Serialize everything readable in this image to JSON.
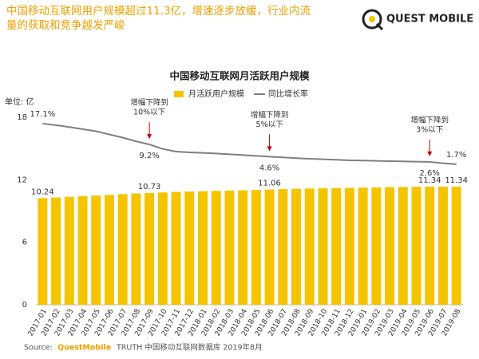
{
  "header": {
    "title": [
      "中国移动互联网用户规模超过11.3亿，增速逐步放缓，行业内流",
      "量的获取和竞争越发严峻"
    ],
    "logo": "QUEST MOBILE"
  },
  "chart_data": {
    "type": "bar-line",
    "title": "中国移动互联网月活跃用户规模",
    "y_label": "单位: 亿",
    "categories": [
      "2017-01",
      "2017-02",
      "2017-03",
      "2017-04",
      "2017-05",
      "2017-06",
      "2017-07",
      "2017-08",
      "2017-09",
      "2017-10",
      "2017-11",
      "2017-12",
      "2018-01",
      "2018-02",
      "2018-03",
      "2018-04",
      "2018-05",
      "2018-06",
      "2018-07",
      "2018-08",
      "2018-09",
      "2018-10",
      "2018-11",
      "2018-12",
      "2019-01",
      "2019-02",
      "2019-03",
      "2019-04",
      "2019-05",
      "2019-06",
      "2019-07",
      "2019-08"
    ],
    "series": [
      {
        "name": "月活跃用户规模",
        "color": "#f5c400",
        "type": "bar",
        "values": [
          10.24,
          10.3,
          10.36,
          10.42,
          10.48,
          10.55,
          10.62,
          10.68,
          10.73,
          10.78,
          10.83,
          10.87,
          10.9,
          10.93,
          10.96,
          10.99,
          11.03,
          11.06,
          11.1,
          11.13,
          11.16,
          11.19,
          11.21,
          11.23,
          11.25,
          11.27,
          11.29,
          11.31,
          11.33,
          11.34,
          11.34,
          11.34
        ],
        "value_labels": [
          "10.24",
          null,
          null,
          null,
          null,
          null,
          null,
          null,
          "10.73",
          null,
          null,
          null,
          null,
          null,
          null,
          null,
          null,
          "11.06",
          null,
          null,
          null,
          null,
          null,
          null,
          null,
          null,
          null,
          null,
          null,
          "11.34",
          null,
          "11.34"
        ]
      },
      {
        "name": "同比增长率",
        "color": "#7f7f7f",
        "type": "line",
        "axis": "y2",
        "values": [
          17.1,
          16.5,
          15.8,
          15.0,
          14.2,
          13.0,
          11.8,
          10.4,
          9.2,
          7.5,
          6.5,
          6.2,
          6.0,
          5.8,
          5.5,
          5.2,
          4.9,
          4.6,
          4.3,
          4.0,
          3.8,
          3.6,
          3.4,
          3.2,
          3.1,
          3.0,
          2.9,
          2.8,
          2.7,
          2.6,
          2.1,
          1.7
        ],
        "value_labels": [
          "17.1%",
          null,
          null,
          null,
          null,
          null,
          null,
          null,
          "9.2%",
          null,
          null,
          null,
          null,
          null,
          null,
          null,
          null,
          "4.6%",
          null,
          null,
          null,
          null,
          null,
          null,
          null,
          null,
          null,
          null,
          null,
          "2.6%",
          null,
          "1.7%"
        ]
      }
    ],
    "ylim": [
      0,
      18
    ],
    "yticks": [
      0,
      6,
      12,
      18
    ],
    "y2lim": [
      -51.5,
      19.5
    ],
    "grid": false,
    "annotations": [
      {
        "x": "2017-09",
        "text": [
          "增幅下降到",
          "10%以下"
        ]
      },
      {
        "x": "2018-06",
        "text": [
          "增幅下降到",
          "5%以下"
        ]
      },
      {
        "x": "2019-06",
        "text": [
          "增幅下降到",
          "3%以下"
        ]
      }
    ]
  },
  "footer": {
    "label": "Source:",
    "brand": "QuestMobile",
    "text": "TRUTH 中国移动互联网数据库 2019年8月"
  }
}
